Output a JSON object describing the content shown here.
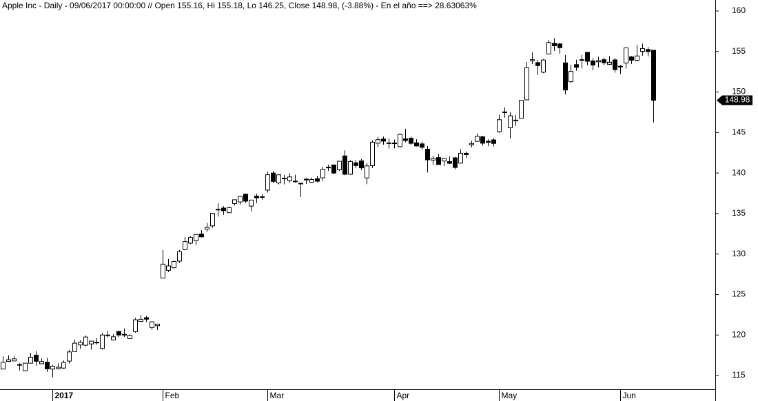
{
  "chart_data": {
    "type": "candlestick",
    "title": "Apple Inc - Daily - 09/06/2017 00:00:00 // Open 155.16, Hi 155.18, Lo 146.25, Close 148.98, (-3.88%) - En el año ==> 28.63063%",
    "categories": [
      null,
      null,
      null,
      null,
      null,
      null,
      null,
      null,
      null,
      "2017",
      null,
      null,
      null,
      null,
      null,
      null,
      null,
      null,
      null,
      null,
      null,
      null,
      null,
      null,
      null,
      null,
      null,
      null,
      null,
      "Feb",
      null,
      null,
      null,
      null,
      null,
      null,
      null,
      null,
      null,
      null,
      null,
      null,
      null,
      null,
      null,
      null,
      null,
      null,
      "Mar",
      null,
      null,
      null,
      null,
      null,
      null,
      null,
      null,
      null,
      null,
      null,
      null,
      null,
      null,
      null,
      null,
      null,
      null,
      null,
      null,
      null,
      null,
      "Apr",
      null,
      null,
      null,
      null,
      null,
      null,
      null,
      null,
      null,
      null,
      null,
      null,
      null,
      null,
      null,
      null,
      null,
      null,
      "May",
      null,
      null,
      null,
      null,
      null,
      null,
      null,
      null,
      null,
      null,
      null,
      null,
      null,
      null,
      null,
      null,
      null,
      null,
      null,
      null,
      null,
      "Jun",
      null,
      null,
      null,
      null,
      null,
      null
    ],
    "open": [
      115.8,
      116.74,
      116.8,
      116.35,
      115.59,
      116.52,
      117.52,
      116.45,
      116.65,
      115.8,
      115.85,
      115.92,
      116.78,
      117.95,
      118.77,
      118.74,
      118.9,
      119.11,
      118.34,
      120.0,
      119.4,
      120.45,
      120.0,
      119.55,
      120.42,
      121.67,
      122.14,
      120.93,
      121.15,
      127.03,
      127.98,
      128.31,
      129.13,
      130.54,
      131.35,
      131.65,
      132.46,
      133.08,
      133.47,
      135.52,
      135.67,
      135.1,
      136.23,
      136.43,
      137.38,
      135.91,
      137.14,
      137.08,
      137.89,
      140.0,
      138.78,
      139.37,
      139.06,
      138.95,
      138.74,
      139.25,
      138.85,
      139.3,
      139.41,
      140.72,
      141.0,
      140.4,
      142.11,
      139.85,
      141.26,
      141.5,
      139.39,
      140.91,
      143.68,
      144.19,
      143.72,
      143.71,
      143.25,
      144.22,
      144.29,
      143.73,
      143.6,
      142.94,
      141.6,
      141.91,
      141.48,
      141.41,
      141.88,
      141.22,
      142.44,
      143.5,
      143.91,
      144.47,
      143.92,
      144.09,
      145.1,
      147.54,
      145.59,
      146.52,
      146.76,
      149.03,
      153.87,
      153.63,
      152.45,
      154.7,
      156.01,
      155.94,
      153.6,
      151.27,
      153.38,
      154.0,
      154.9,
      153.84,
      153.73,
      154.0,
      153.42,
      153.97,
      153.17,
      153.58,
      154.34,
      153.9,
      155.02,
      155.25,
      155.16
    ],
    "high": [
      117.38,
      117.5,
      117.4,
      116.51,
      116.52,
      117.8,
      118.02,
      117.11,
      117.2,
      116.33,
      116.51,
      116.86,
      118.16,
      119.43,
      119.38,
      119.93,
      119.3,
      119.62,
      120.24,
      120.5,
      120.09,
      120.45,
      120.81,
      120.1,
      122.1,
      122.44,
      122.35,
      121.63,
      121.39,
      130.49,
      129.39,
      129.19,
      130.5,
      132.09,
      132.22,
      132.45,
      132.94,
      133.82,
      135.09,
      136.27,
      135.9,
      135.83,
      136.75,
      137.12,
      137.48,
      136.66,
      137.44,
      137.44,
      140.15,
      140.28,
      139.83,
      139.77,
      139.98,
      139.8,
      138.79,
      139.36,
      139.43,
      139.65,
      140.75,
      141.02,
      141.0,
      141.5,
      142.8,
      141.6,
      141.58,
      141.74,
      141.22,
      144.04,
      144.49,
      144.5,
      144.27,
      144.12,
      144.89,
      145.46,
      144.52,
      144.18,
      143.88,
      143.35,
      142.15,
      142.38,
      141.88,
      142.04,
      142.0,
      142.92,
      142.68,
      143.95,
      144.9,
      144.6,
      144.16,
      144.3,
      147.2,
      148.09,
      147.49,
      147.14,
      148.98,
      153.7,
      154.88,
      153.94,
      154.07,
      156.42,
      156.65,
      156.06,
      154.57,
      153.34,
      153.98,
      154.58,
      154.9,
      154.17,
      154.35,
      154.24,
      154.43,
      154.17,
      153.33,
      155.45,
      154.45,
      155.81,
      155.98,
      155.54,
      155.18
    ],
    "low": [
      115.75,
      116.68,
      116.78,
      115.64,
      115.59,
      116.49,
      116.2,
      116.4,
      115.43,
      114.76,
      115.75,
      115.81,
      116.47,
      117.94,
      118.3,
      118.6,
      118.21,
      118.81,
      118.22,
      119.71,
      119.37,
      119.73,
      119.77,
      119.5,
      120.28,
      121.6,
      121.6,
      120.66,
      120.62,
      127.01,
      127.78,
      128.16,
      128.9,
      130.45,
      131.22,
      131.12,
      132.05,
      132.75,
      133.25,
      134.62,
      134.84,
      135.1,
      135.98,
      136.11,
      136.3,
      135.28,
      136.28,
      136.7,
      137.6,
      138.76,
      138.59,
      138.6,
      138.79,
      138.82,
      137.05,
      138.64,
      138.82,
      138.84,
      139.03,
      140.26,
      139.89,
      140.23,
      139.73,
      139.76,
      140.61,
      140.35,
      138.62,
      140.62,
      143.19,
      143.5,
      143.01,
      143.05,
      143.17,
      143.81,
      143.45,
      143.27,
      142.9,
      140.06,
      141.01,
      141.05,
      140.87,
      141.11,
      140.45,
      141.16,
      141.85,
      143.18,
      143.87,
      143.38,
      143.31,
      143.27,
      144.96,
      146.84,
      144.27,
      145.81,
      146.76,
      149.03,
      153.45,
      152.11,
      152.31,
      154.67,
      155.05,
      154.72,
      149.71,
      151.13,
      152.63,
      152.91,
      153.31,
      152.67,
      153.03,
      153.31,
      153.33,
      152.38,
      152.22,
      152.89,
      153.46,
      153.78,
      154.48,
      154.4,
      146.25
    ],
    "close": [
      116.64,
      116.95,
      117.06,
      116.29,
      116.52,
      117.26,
      116.76,
      116.73,
      115.82,
      116.15,
      116.02,
      116.61,
      117.91,
      118.99,
      119.11,
      119.75,
      119.25,
      119.04,
      120.0,
      119.99,
      119.78,
      120.0,
      120.08,
      119.97,
      121.88,
      121.94,
      121.95,
      121.63,
      121.35,
      128.75,
      128.53,
      129.08,
      130.29,
      131.53,
      132.04,
      132.42,
      132.12,
      133.29,
      135.02,
      135.51,
      135.35,
      135.72,
      136.7,
      137.11,
      136.53,
      136.66,
      136.93,
      136.99,
      139.79,
      138.96,
      139.78,
      139.34,
      139.52,
      139.0,
      138.68,
      139.14,
      139.2,
      138.99,
      140.46,
      140.69,
      139.99,
      141.46,
      139.84,
      141.42,
      140.92,
      140.64,
      140.88,
      143.8,
      144.12,
      143.93,
      143.66,
      143.7,
      144.77,
      144.02,
      143.66,
      143.34,
      143.17,
      141.63,
      141.8,
      141.05,
      141.83,
      141.2,
      140.68,
      142.44,
      142.27,
      143.64,
      144.53,
      143.68,
      143.79,
      143.65,
      146.58,
      147.51,
      147.06,
      146.53,
      148.96,
      153.01,
      153.99,
      153.26,
      153.95,
      156.1,
      155.7,
      155.47,
      150.25,
      152.54,
      153.06,
      153.99,
      153.8,
      153.34,
      153.87,
      153.61,
      153.67,
      152.76,
      153.18,
      155.45,
      153.93,
      154.45,
      155.37,
      154.99,
      148.98
    ],
    "up_color": "#ffffff",
    "down_color": "#000000",
    "edge_color": "#000000",
    "ylim": [
      113.3,
      161.36
    ],
    "yticks": [
      115,
      120,
      125,
      130,
      135,
      140,
      145,
      150,
      155,
      160
    ]
  }
}
